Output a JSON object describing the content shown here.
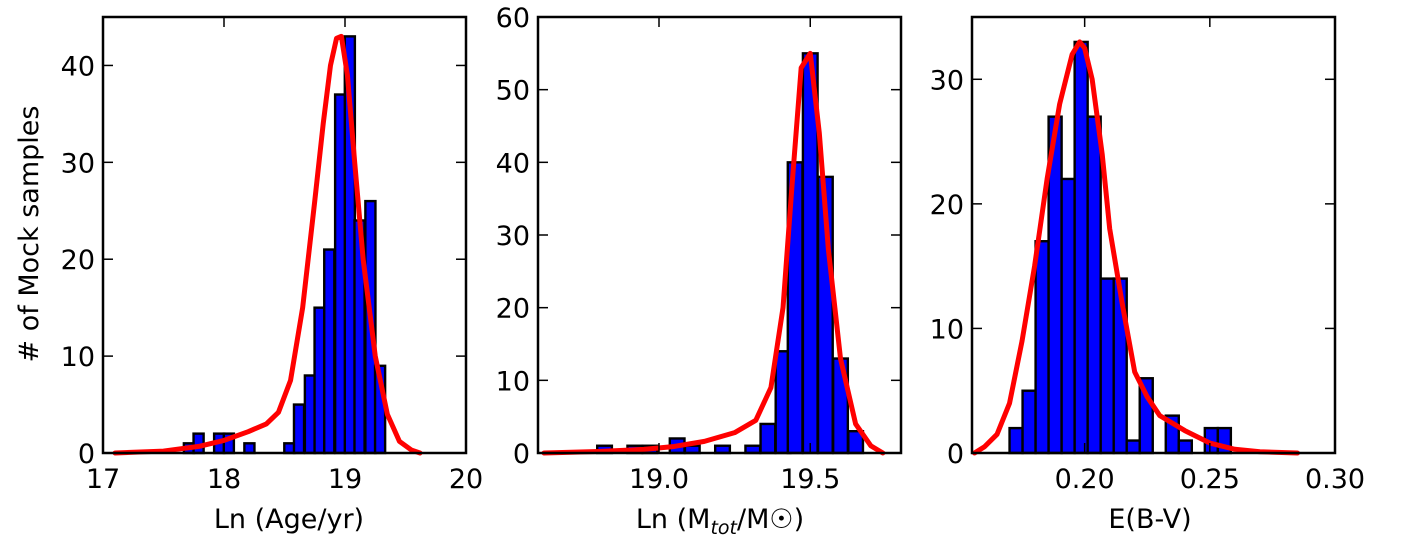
{
  "figure": {
    "ylabel": "# of Mock samples"
  },
  "chart_data": [
    {
      "type": "bar",
      "xlabel": "Ln (Age/yr)",
      "ylabel": "# of Mock samples",
      "xlim": [
        17,
        20
      ],
      "ylim": [
        0,
        45
      ],
      "xticks": [
        17,
        18,
        19,
        20
      ],
      "xtick_labels": [
        "17",
        "18",
        "19",
        "20"
      ],
      "yticks": [
        0,
        10,
        20,
        30,
        40
      ],
      "ytick_labels": [
        "0",
        "10",
        "20",
        "30",
        "40"
      ],
      "bin_width": 0.0833,
      "bars": [
        {
          "x": 17.71,
          "value": 1
        },
        {
          "x": 17.79,
          "value": 2
        },
        {
          "x": 17.96,
          "value": 2
        },
        {
          "x": 18.04,
          "value": 2
        },
        {
          "x": 18.21,
          "value": 1
        },
        {
          "x": 18.54,
          "value": 1
        },
        {
          "x": 18.62,
          "value": 5
        },
        {
          "x": 18.71,
          "value": 8
        },
        {
          "x": 18.79,
          "value": 15
        },
        {
          "x": 18.87,
          "value": 21
        },
        {
          "x": 18.96,
          "value": 37
        },
        {
          "x": 19.04,
          "value": 43
        },
        {
          "x": 19.12,
          "value": 24
        },
        {
          "x": 19.21,
          "value": 26
        },
        {
          "x": 19.29,
          "value": 9
        }
      ],
      "curve": {
        "x": [
          17.1,
          17.5,
          17.8,
          18.0,
          18.2,
          18.35,
          18.45,
          18.55,
          18.65,
          18.75,
          18.82,
          18.88,
          18.93,
          18.97,
          19.02,
          19.08,
          19.15,
          19.25,
          19.35,
          19.45,
          19.55,
          19.62
        ],
        "y": [
          0,
          0.2,
          0.7,
          1.3,
          2.2,
          3.0,
          4.2,
          7.5,
          15,
          26,
          34,
          40,
          42.8,
          43,
          39,
          30,
          20,
          10,
          4,
          1.2,
          0.3,
          0
        ]
      }
    },
    {
      "type": "bar",
      "xlabel_main": "Ln (M",
      "xlabel_sub1": "tot",
      "xlabel_mid": "/M",
      "xlabel_symbol": "☉",
      "xlabel_end": ")",
      "xlim": [
        18.6,
        19.8
      ],
      "ylim": [
        0,
        60
      ],
      "xticks": [
        19.0,
        19.5
      ],
      "xtick_labels": [
        "19.0",
        "19.5"
      ],
      "yticks": [
        0,
        10,
        20,
        30,
        40,
        50,
        60
      ],
      "ytick_labels": [
        "0",
        "10",
        "20",
        "30",
        "40",
        "50",
        "60"
      ],
      "bin_width": 0.0485,
      "bars": [
        {
          "x": 18.82,
          "value": 1
        },
        {
          "x": 18.92,
          "value": 1
        },
        {
          "x": 18.97,
          "value": 1
        },
        {
          "x": 19.06,
          "value": 2
        },
        {
          "x": 19.11,
          "value": 1
        },
        {
          "x": 19.21,
          "value": 1
        },
        {
          "x": 19.31,
          "value": 1
        },
        {
          "x": 19.36,
          "value": 4
        },
        {
          "x": 19.41,
          "value": 14
        },
        {
          "x": 19.45,
          "value": 40
        },
        {
          "x": 19.5,
          "value": 55
        },
        {
          "x": 19.55,
          "value": 38
        },
        {
          "x": 19.6,
          "value": 13
        },
        {
          "x": 19.65,
          "value": 3
        }
      ],
      "curve": {
        "x": [
          18.62,
          18.8,
          18.95,
          19.05,
          19.15,
          19.25,
          19.32,
          19.37,
          19.41,
          19.44,
          19.47,
          19.5,
          19.53,
          19.56,
          19.6,
          19.65,
          19.7,
          19.74
        ],
        "y": [
          0,
          0.2,
          0.5,
          0.9,
          1.6,
          2.8,
          4.5,
          9,
          20,
          37,
          53,
          55,
          44,
          28,
          13,
          4,
          1,
          0
        ]
      }
    },
    {
      "type": "bar",
      "xlabel": "E(B-V)",
      "xlim": [
        0.155,
        0.3
      ],
      "ylim": [
        0,
        35
      ],
      "xticks": [
        0.2,
        0.25,
        0.3
      ],
      "xtick_labels": [
        "0.20",
        "0.25",
        "0.30"
      ],
      "yticks": [
        0,
        10,
        20,
        30
      ],
      "ytick_labels": [
        "0",
        "10",
        "20",
        "30"
      ],
      "bin_width": 0.0052,
      "bars": [
        {
          "x": 0.1726,
          "value": 2
        },
        {
          "x": 0.1778,
          "value": 5
        },
        {
          "x": 0.183,
          "value": 17
        },
        {
          "x": 0.1882,
          "value": 27
        },
        {
          "x": 0.1934,
          "value": 22
        },
        {
          "x": 0.1986,
          "value": 33
        },
        {
          "x": 0.2038,
          "value": 27
        },
        {
          "x": 0.209,
          "value": 14
        },
        {
          "x": 0.2142,
          "value": 14
        },
        {
          "x": 0.2194,
          "value": 1
        },
        {
          "x": 0.2246,
          "value": 6
        },
        {
          "x": 0.235,
          "value": 3
        },
        {
          "x": 0.2402,
          "value": 1
        },
        {
          "x": 0.2506,
          "value": 2
        },
        {
          "x": 0.2558,
          "value": 2
        }
      ],
      "curve": {
        "x": [
          0.156,
          0.16,
          0.165,
          0.17,
          0.175,
          0.18,
          0.185,
          0.19,
          0.195,
          0.198,
          0.2,
          0.203,
          0.207,
          0.21,
          0.215,
          0.22,
          0.225,
          0.23,
          0.24,
          0.25,
          0.26,
          0.27,
          0.285
        ],
        "y": [
          0,
          0.5,
          1.5,
          4,
          9,
          15,
          22,
          28,
          32,
          33,
          32.5,
          30,
          24,
          18,
          12,
          6.5,
          4.5,
          3,
          1.8,
          0.8,
          0.3,
          0.1,
          0
        ]
      }
    }
  ]
}
